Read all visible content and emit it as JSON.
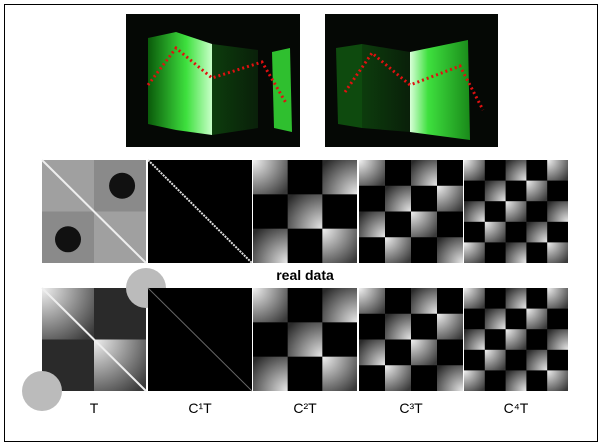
{
  "figure": {
    "section_label": "real data",
    "column_labels": [
      "T",
      "C¹T",
      "C²T",
      "C³T",
      "C⁴T"
    ]
  }
}
